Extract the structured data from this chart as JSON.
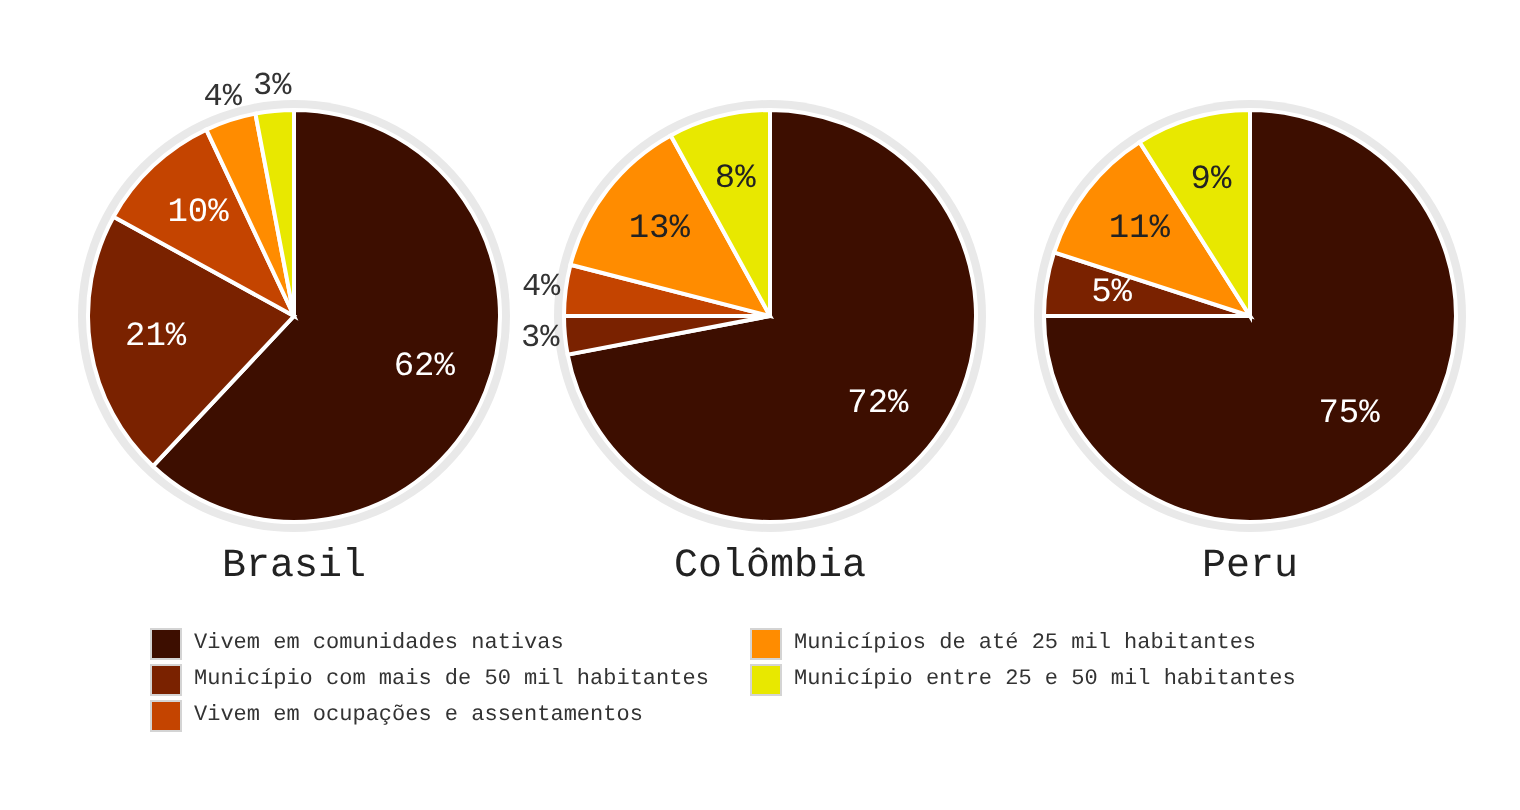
{
  "chart_data": [
    {
      "type": "pie",
      "title": "Brasil",
      "categories": [
        "Vivem em comunidades nativas",
        "Município com mais de 50 mil habitantes",
        "Vivem em ocupações e assentamentos",
        "Municípios de até 25 mil habitantes",
        "Município entre 25 e 50 mil habitantes"
      ],
      "values": [
        62,
        21,
        10,
        4,
        3
      ],
      "colors": [
        "#3d0e00",
        "#7a2200",
        "#c44400",
        "#ff8c00",
        "#e8e800"
      ],
      "value_labels": [
        "62%",
        "21%",
        "10%",
        "4%",
        "3%"
      ],
      "legend": "bottom"
    },
    {
      "type": "pie",
      "title": "Colômbia",
      "categories": [
        null,
        null,
        null,
        null,
        null
      ],
      "values": [
        72,
        3,
        4,
        13,
        8
      ],
      "colors": [
        "#3d0e00",
        "#7a2200",
        "#c44400",
        "#ff8c00",
        "#e8e800"
      ],
      "value_labels": [
        "72%",
        "3%",
        "4%",
        "13%",
        "8%"
      ]
    },
    {
      "type": "pie",
      "title": "Peru",
      "categories": [
        null,
        null,
        null,
        null
      ],
      "values": [
        75,
        5,
        11,
        9
      ],
      "colors": [
        "#3d0e00",
        "#7a2200",
        "#ff8c00",
        "#e8e800"
      ],
      "value_labels": [
        "75%",
        "5%",
        "11%",
        "9%"
      ]
    }
  ]
}
